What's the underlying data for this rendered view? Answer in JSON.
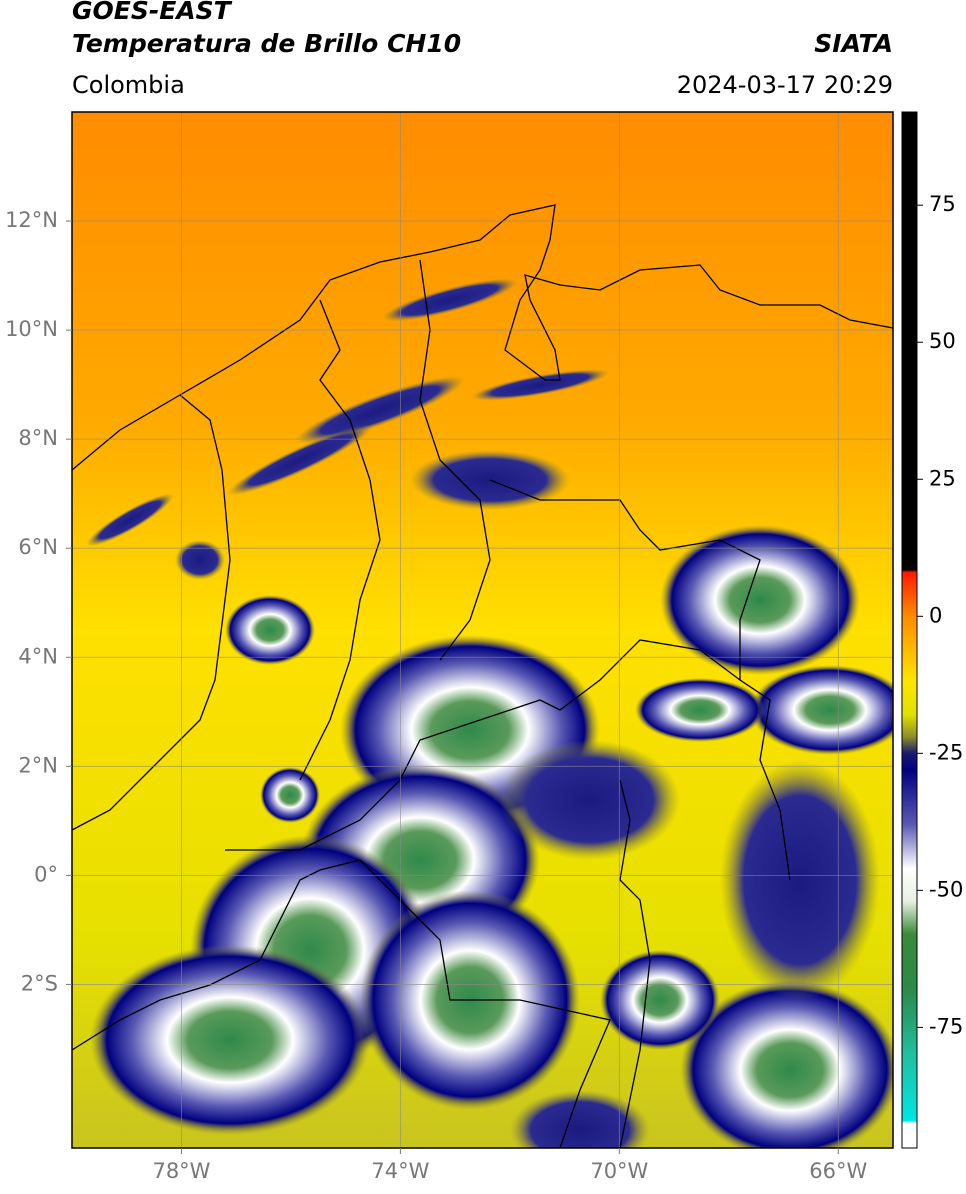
{
  "header": {
    "satellite": "GOES-EAST",
    "product": "Temperatura de Brillo CH10",
    "region": "Colombia",
    "source": "SIATA",
    "timestamp": "2024-03-17 20:29"
  },
  "map": {
    "xlim": [
      -80,
      -65
    ],
    "ylim": [
      -5,
      14
    ],
    "xticks": [
      {
        "value": -78,
        "label": "78°W"
      },
      {
        "value": -74,
        "label": "74°W"
      },
      {
        "value": -70,
        "label": "70°W"
      },
      {
        "value": -66,
        "label": "66°W"
      }
    ],
    "yticks": [
      {
        "value": 12,
        "label": "12°N"
      },
      {
        "value": 10,
        "label": "10°N"
      },
      {
        "value": 8,
        "label": "8°N"
      },
      {
        "value": 6,
        "label": "6°N"
      },
      {
        "value": 4,
        "label": "4°N"
      },
      {
        "value": 2,
        "label": "2°N"
      },
      {
        "value": 0,
        "label": "0°"
      },
      {
        "value": -2,
        "label": "2°S"
      }
    ],
    "grid": true
  },
  "colorbar": {
    "lim": [
      -97,
      92
    ],
    "ticks": [
      75,
      50,
      25,
      0,
      -25,
      -50,
      -75
    ],
    "stops": [
      {
        "value": 92,
        "color": "#000000"
      },
      {
        "value": 8.5,
        "color": "#000000"
      },
      {
        "value": 8,
        "color": "#ff1a00"
      },
      {
        "value": 0,
        "color": "#ff8c00"
      },
      {
        "value": -12,
        "color": "#ffe600"
      },
      {
        "value": -18,
        "color": "#e0e000"
      },
      {
        "value": -22,
        "color": "#8c8c2a"
      },
      {
        "value": -25,
        "color": "#1a1a70"
      },
      {
        "value": -28,
        "color": "#000080"
      },
      {
        "value": -38,
        "color": "#5a5ab4"
      },
      {
        "value": -46,
        "color": "#ffffff"
      },
      {
        "value": -52,
        "color": "#e8f0e0"
      },
      {
        "value": -58,
        "color": "#3a8a3a"
      },
      {
        "value": -68,
        "color": "#2a8a4a"
      },
      {
        "value": -80,
        "color": "#20c0a0"
      },
      {
        "value": -92,
        "color": "#00e6e6"
      },
      {
        "value": -92.5,
        "color": "#ffffff"
      },
      {
        "value": -97,
        "color": "#ffffff"
      }
    ]
  }
}
